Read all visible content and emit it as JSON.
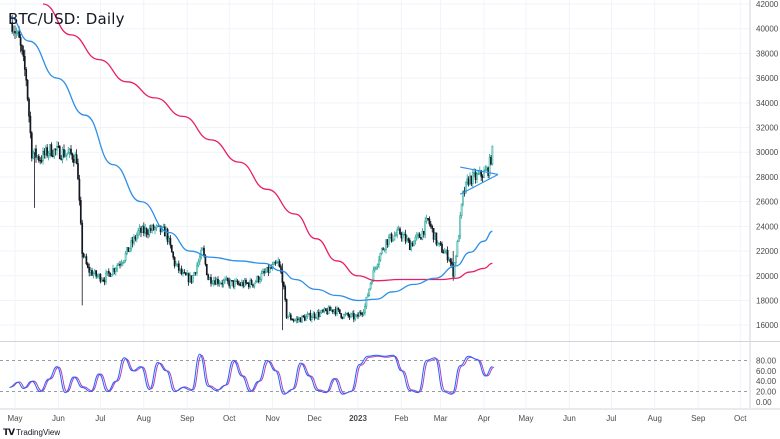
{
  "chart_data": {
    "type": "candlestick",
    "title": "BTC/USD: Daily",
    "brand": "TradingView",
    "brand_icon": "tradingview-logo",
    "price_axis": {
      "ylim": [
        14800,
        42000
      ],
      "ticks": [
        42000,
        40000,
        38000,
        36000,
        34000,
        32000,
        30000,
        28000,
        26000,
        24000,
        22000,
        20000,
        18000,
        16000
      ]
    },
    "x_axis": {
      "ticks": [
        {
          "label": "May",
          "day": 0,
          "bold": false
        },
        {
          "label": "Jun",
          "day": 31,
          "bold": false
        },
        {
          "label": "Jul",
          "day": 61,
          "bold": false
        },
        {
          "label": "Aug",
          "day": 92,
          "bold": false
        },
        {
          "label": "Sep",
          "day": 123,
          "bold": false
        },
        {
          "label": "Oct",
          "day": 153,
          "bold": false
        },
        {
          "label": "Nov",
          "day": 184,
          "bold": false
        },
        {
          "label": "Dec",
          "day": 214,
          "bold": false
        },
        {
          "label": "2023",
          "day": 245,
          "bold": true
        },
        {
          "label": "Feb",
          "day": 276,
          "bold": false
        },
        {
          "label": "Mar",
          "day": 304,
          "bold": false
        },
        {
          "label": "Apr",
          "day": 335,
          "bold": false
        },
        {
          "label": "May",
          "day": 365,
          "bold": false
        },
        {
          "label": "Jun",
          "day": 396,
          "bold": false
        },
        {
          "label": "Jul",
          "day": 426,
          "bold": false
        },
        {
          "label": "Aug",
          "day": 457,
          "bold": false
        },
        {
          "label": "Sep",
          "day": 488,
          "bold": false
        },
        {
          "label": "Oct",
          "day": 518,
          "bold": false
        }
      ]
    },
    "price_path": [
      [
        -2,
        40500
      ],
      [
        3,
        39000
      ],
      [
        8,
        36000
      ],
      [
        12,
        30000
      ],
      [
        18,
        29500
      ],
      [
        25,
        30200
      ],
      [
        32,
        30000
      ],
      [
        40,
        29800
      ],
      [
        44,
        29500
      ],
      [
        48,
        22000
      ],
      [
        52,
        20500
      ],
      [
        58,
        20000
      ],
      [
        64,
        19800
      ],
      [
        70,
        20500
      ],
      [
        78,
        21500
      ],
      [
        88,
        23500
      ],
      [
        100,
        23800
      ],
      [
        108,
        23500
      ],
      [
        114,
        21000
      ],
      [
        120,
        20000
      ],
      [
        126,
        19700
      ],
      [
        134,
        22000
      ],
      [
        138,
        19800
      ],
      [
        148,
        19500
      ],
      [
        160,
        19300
      ],
      [
        170,
        19400
      ],
      [
        176,
        20000
      ],
      [
        182,
        20500
      ],
      [
        188,
        21000
      ],
      [
        191,
        19800
      ],
      [
        194,
        16800
      ],
      [
        200,
        16400
      ],
      [
        210,
        16700
      ],
      [
        220,
        17000
      ],
      [
        228,
        17300
      ],
      [
        234,
        16800
      ],
      [
        240,
        16700
      ],
      [
        244,
        16600
      ],
      [
        250,
        17500
      ],
      [
        254,
        19500
      ],
      [
        258,
        21000
      ],
      [
        265,
        22800
      ],
      [
        275,
        23500
      ],
      [
        282,
        22500
      ],
      [
        290,
        23300
      ],
      [
        295,
        24500
      ],
      [
        302,
        22500
      ],
      [
        306,
        22000
      ],
      [
        310,
        21500
      ],
      [
        313,
        20300
      ],
      [
        316,
        22500
      ],
      [
        320,
        26500
      ],
      [
        324,
        27800
      ],
      [
        330,
        28000
      ],
      [
        335,
        28300
      ],
      [
        338,
        28600
      ],
      [
        341,
        30000
      ]
    ],
    "sma_blue": [
      [
        -4,
        41000
      ],
      [
        10,
        39000
      ],
      [
        30,
        36000
      ],
      [
        50,
        33000
      ],
      [
        70,
        29000
      ],
      [
        90,
        26000
      ],
      [
        110,
        23500
      ],
      [
        125,
        22000
      ],
      [
        140,
        21500
      ],
      [
        160,
        21200
      ],
      [
        178,
        21000
      ],
      [
        190,
        20400
      ],
      [
        200,
        19700
      ],
      [
        215,
        18900
      ],
      [
        230,
        18400
      ],
      [
        245,
        18000
      ],
      [
        258,
        18100
      ],
      [
        270,
        18700
      ],
      [
        285,
        19300
      ],
      [
        300,
        19800
      ],
      [
        315,
        20800
      ],
      [
        325,
        21900
      ],
      [
        335,
        22800
      ],
      [
        341,
        23600
      ]
    ],
    "sma_red": [
      [
        20,
        42000
      ],
      [
        40,
        39500
      ],
      [
        60,
        37500
      ],
      [
        80,
        35700
      ],
      [
        100,
        34400
      ],
      [
        120,
        32900
      ],
      [
        140,
        31000
      ],
      [
        160,
        29200
      ],
      [
        180,
        27000
      ],
      [
        200,
        25000
      ],
      [
        215,
        23000
      ],
      [
        230,
        21200
      ],
      [
        245,
        20000
      ],
      [
        258,
        19600
      ],
      [
        275,
        19700
      ],
      [
        290,
        19700
      ],
      [
        305,
        19700
      ],
      [
        315,
        19800
      ],
      [
        325,
        20300
      ],
      [
        335,
        20600
      ],
      [
        341,
        21000
      ]
    ],
    "triangle_pattern": {
      "upper": [
        [
          318,
          28800
        ],
        [
          345,
          28200
        ]
      ],
      "lower": [
        [
          318,
          26600
        ],
        [
          345,
          28200
        ]
      ]
    },
    "stochastic": {
      "ylim": [
        0,
        100
      ],
      "levels": [
        20,
        80
      ],
      "ticks": [
        80.0,
        60.0,
        40.0,
        20.0,
        0.0
      ],
      "tick_labels": [
        "80.00",
        "60.00",
        "40.00",
        "20.00",
        "0.00"
      ],
      "peaks": [
        [
          -4,
          28
        ],
        [
          2,
          38
        ],
        [
          6,
          26
        ],
        [
          12,
          40
        ],
        [
          18,
          20
        ],
        [
          24,
          44
        ],
        [
          30,
          68
        ],
        [
          36,
          18
        ],
        [
          42,
          48
        ],
        [
          48,
          28
        ],
        [
          54,
          20
        ],
        [
          60,
          54
        ],
        [
          66,
          20
        ],
        [
          72,
          40
        ],
        [
          78,
          85
        ],
        [
          84,
          60
        ],
        [
          90,
          68
        ],
        [
          96,
          24
        ],
        [
          102,
          76
        ],
        [
          108,
          60
        ],
        [
          114,
          20
        ],
        [
          120,
          28
        ],
        [
          126,
          22
        ],
        [
          132,
          92
        ],
        [
          138,
          30
        ],
        [
          144,
          22
        ],
        [
          150,
          32
        ],
        [
          156,
          80
        ],
        [
          162,
          50
        ],
        [
          168,
          20
        ],
        [
          174,
          40
        ],
        [
          180,
          80
        ],
        [
          186,
          60
        ],
        [
          192,
          15
        ],
        [
          198,
          24
        ],
        [
          204,
          75
        ],
        [
          210,
          50
        ],
        [
          216,
          22
        ],
        [
          222,
          18
        ],
        [
          228,
          45
        ],
        [
          234,
          15
        ],
        [
          240,
          20
        ],
        [
          246,
          72
        ],
        [
          252,
          88
        ],
        [
          258,
          90
        ],
        [
          264,
          88
        ],
        [
          270,
          90
        ],
        [
          276,
          60
        ],
        [
          282,
          22
        ],
        [
          288,
          18
        ],
        [
          294,
          80
        ],
        [
          300,
          85
        ],
        [
          306,
          20
        ],
        [
          312,
          15
        ],
        [
          318,
          70
        ],
        [
          324,
          88
        ],
        [
          330,
          82
        ],
        [
          336,
          50
        ],
        [
          341,
          68
        ]
      ]
    },
    "colors": {
      "up_candle": "#26a69a",
      "down_candle": "#131722",
      "candle_up_fill": "#ffffff",
      "sma_blue": "#2d8fe8",
      "sma_red": "#e91e63",
      "stoch_k": "#2962ff",
      "stoch_d": "#ab47bc",
      "level_line": "#787b86",
      "grid": "#f0f3fa",
      "axis_text": "#4a4a4a",
      "separator": "#d1d4dc"
    }
  }
}
